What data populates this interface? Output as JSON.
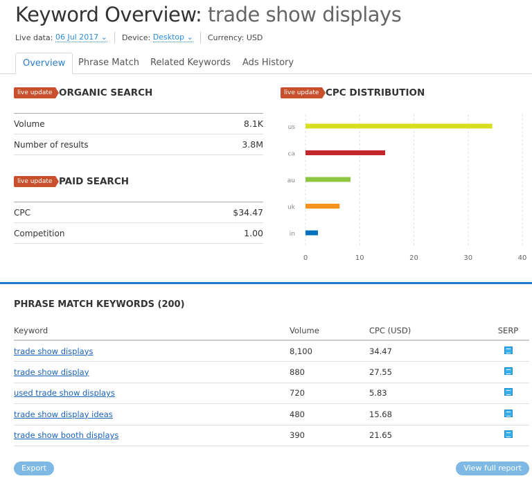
{
  "header": {
    "title_prefix": "Keyword Overview:",
    "keyword": "trade show displays",
    "live_data_label": "Live data:",
    "live_data_value": "06 Jul 2017",
    "device_label": "Device:",
    "device_value": "Desktop",
    "currency": "Currency: USD"
  },
  "tabs": [
    {
      "label": "Overview",
      "active": true
    },
    {
      "label": "Phrase Match"
    },
    {
      "label": "Related Keywords"
    },
    {
      "label": "Ads History"
    }
  ],
  "badge": "live update",
  "organic": {
    "title": "ORGANIC SEARCH",
    "rows": [
      {
        "label": "Volume",
        "value": "8.1K"
      },
      {
        "label": "Number of results",
        "value": "3.8M"
      }
    ]
  },
  "paid": {
    "title": "PAID SEARCH",
    "rows": [
      {
        "label": "CPC",
        "value": "$34.47"
      },
      {
        "label": "Competition",
        "value": "1.00"
      }
    ]
  },
  "cpc_title": "CPC DISTRIBUTION",
  "chart_data": {
    "type": "bar",
    "orientation": "horizontal",
    "categories": [
      "us",
      "ca",
      "au",
      "uk",
      "in"
    ],
    "values": [
      34.47,
      14.7,
      8.3,
      6.3,
      2.3
    ],
    "colors": [
      "#d8df1f",
      "#c1272d",
      "#8dc63f",
      "#f7931e",
      "#0071bc"
    ],
    "xlim": [
      0,
      40
    ],
    "xticks": [
      0,
      10,
      20,
      30,
      40
    ],
    "grid": true
  },
  "phrase": {
    "title": "PHRASE MATCH KEYWORDS (200)",
    "columns": [
      "Keyword",
      "Volume",
      "CPC (USD)",
      "SERP"
    ],
    "rows": [
      {
        "keyword": "trade show displays",
        "volume": "8,100",
        "cpc": "34.47"
      },
      {
        "keyword": "trade show display",
        "volume": "880",
        "cpc": "27.55"
      },
      {
        "keyword": "used trade show displays",
        "volume": "720",
        "cpc": "5.83"
      },
      {
        "keyword": "trade show display ideas",
        "volume": "480",
        "cpc": "15.68"
      },
      {
        "keyword": "trade show booth displays",
        "volume": "390",
        "cpc": "21.65"
      }
    ]
  },
  "buttons": {
    "export": "Export",
    "full_report": "View full report"
  }
}
